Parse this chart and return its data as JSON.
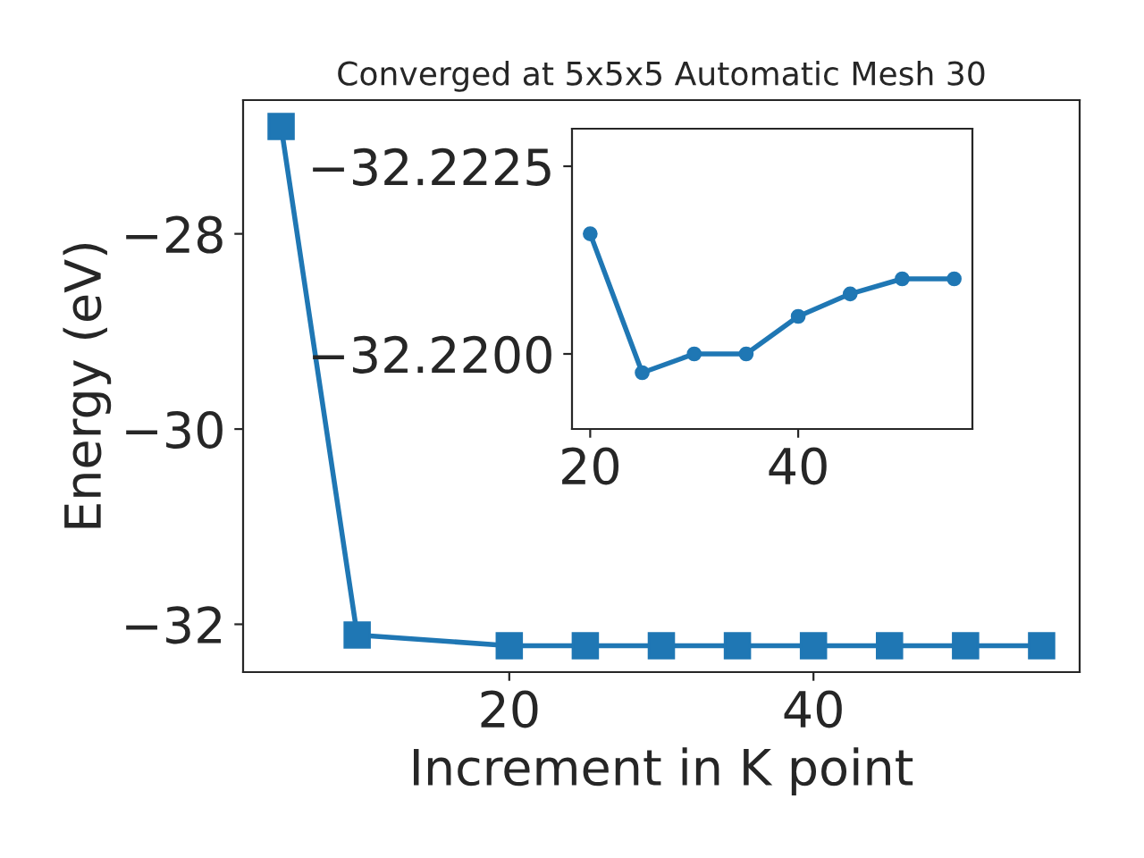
{
  "chart_data": [
    {
      "type": "line",
      "title": "Converged at 5x5x5 Automatic Mesh 30",
      "xlabel": "Increment in K point",
      "ylabel": "Energy (eV)",
      "x": [
        5,
        10,
        20,
        25,
        30,
        35,
        40,
        45,
        50,
        55
      ],
      "values": [
        -26.9,
        -32.11,
        -32.22,
        -32.22,
        -32.22,
        -32.22,
        -32.22,
        -32.22,
        -32.22,
        -32.22
      ],
      "color": "#1f77b4",
      "marker": "square",
      "line_style": "solid",
      "xlim": [
        2.5,
        57.5
      ],
      "ylim": [
        -32.49,
        -26.63
      ],
      "xticks": [
        20,
        40
      ],
      "yticks": [
        -32,
        -30,
        -28
      ],
      "grid": false,
      "legend": false
    },
    {
      "type": "line",
      "x": [
        20,
        25,
        30,
        35,
        40,
        45,
        50,
        55
      ],
      "values": [
        -32.2216,
        -32.21975,
        -32.22,
        -32.22,
        -32.2205,
        -32.2208,
        -32.221,
        -32.221
      ],
      "color": "#1f77b4",
      "marker": "circle",
      "line_style": "solid",
      "xlim": [
        18.25,
        56.75
      ],
      "ylim": [
        -32.219,
        -32.223
      ],
      "xticks": [
        20,
        40
      ],
      "yticks": [
        {
          "value": -32.2225,
          "label": "−32.2225"
        },
        {
          "value": -32.22,
          "label": "−32.2200"
        }
      ],
      "grid": false,
      "legend": false
    }
  ]
}
